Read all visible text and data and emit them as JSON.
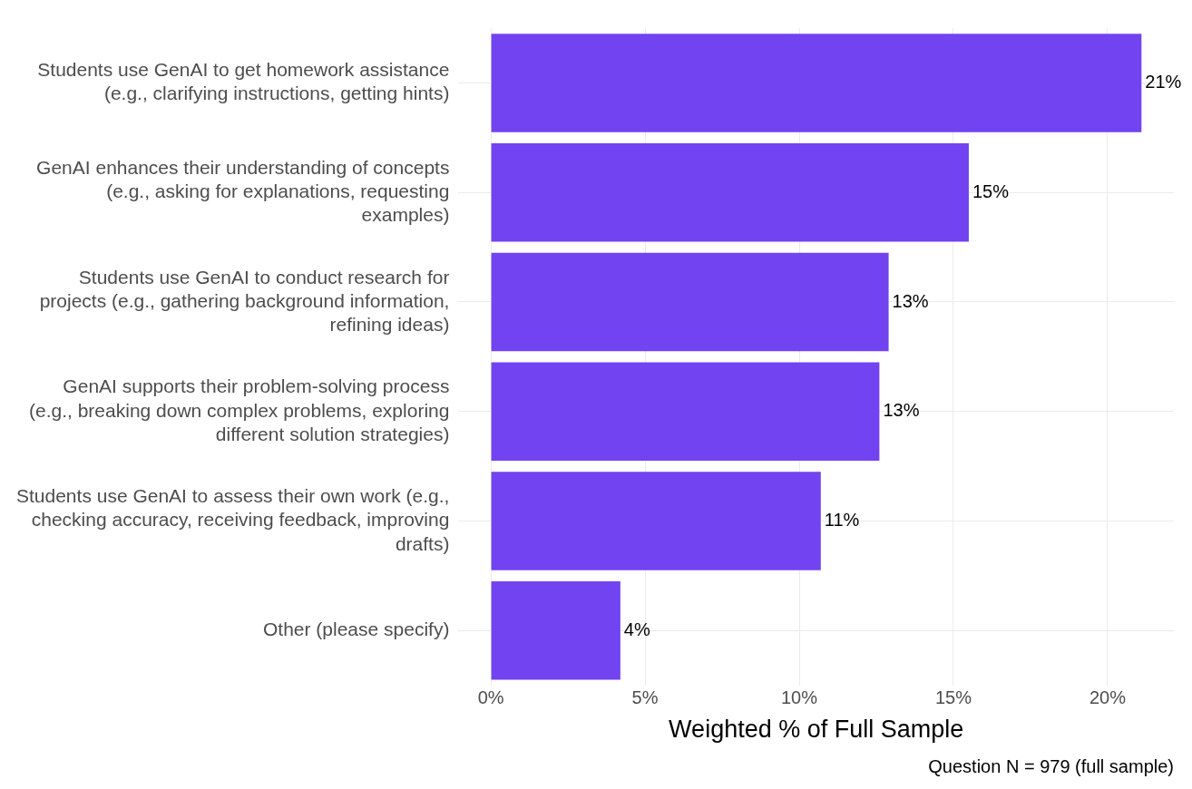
{
  "chart_data": {
    "type": "bar",
    "orientation": "horizontal",
    "xlabel": "Weighted % of Full Sample",
    "categories": [
      "Students use GenAI to get homework assistance (e.g., clarifying instructions, getting hints)",
      "GenAI enhances their understanding of concepts (e.g., asking for explanations, requesting examples)",
      "Students use GenAI to conduct research for projects (e.g., gathering background information, refining ideas)",
      "GenAI supports their problem-solving process (e.g., breaking down complex problems, exploring different solution strategies)",
      "Students use GenAI to assess their own work (e.g., checking accuracy, receiving feedback, improving drafts)",
      "Other (please specify)"
    ],
    "values": [
      21.1,
      15.5,
      12.9,
      12.6,
      10.7,
      4.2
    ],
    "value_labels": [
      "21%",
      "15%",
      "13%",
      "13%",
      "11%",
      "4%"
    ],
    "color": "#7243f0",
    "xlim": [
      -1.05,
      22.15
    ],
    "xticks": [
      {
        "value": 0,
        "label": "0%"
      },
      {
        "value": 5,
        "label": "5%"
      },
      {
        "value": 10,
        "label": "10%"
      },
      {
        "value": 15,
        "label": "15%"
      },
      {
        "value": 20,
        "label": "20%"
      }
    ],
    "grid": true,
    "legend": false,
    "annotations": [
      "Question N = 979 (full sample)"
    ]
  }
}
